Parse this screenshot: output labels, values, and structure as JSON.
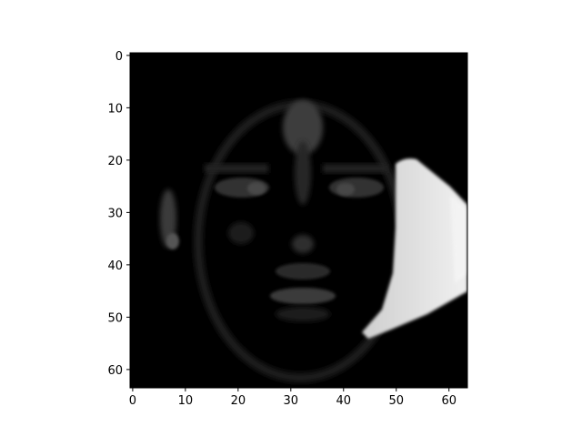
{
  "chart_data": {
    "type": "heatmap",
    "title": "",
    "xlabel": "",
    "ylabel": "",
    "colormap": "gray",
    "image_size": [
      64,
      64
    ],
    "xlim": [
      -0.5,
      63.5
    ],
    "ylim": [
      63.5,
      -0.5
    ],
    "y_axis_inverted": true,
    "x_ticks": [
      0,
      10,
      20,
      30,
      40,
      50,
      60
    ],
    "y_ticks": [
      0,
      10,
      20,
      30,
      40,
      50,
      60
    ],
    "content": "grayscale face image: dark face with faintly lit forehead, eyes, nose, mouth and left ear; bright illuminated region on the right side (columns ~50-63, rows ~20-55)",
    "bright_region": {
      "rows": [
        20,
        56
      ],
      "cols": [
        44,
        63
      ],
      "peak_intensity": 0.9
    }
  },
  "colors": {
    "background": "#ffffff",
    "axis": "#000000"
  }
}
